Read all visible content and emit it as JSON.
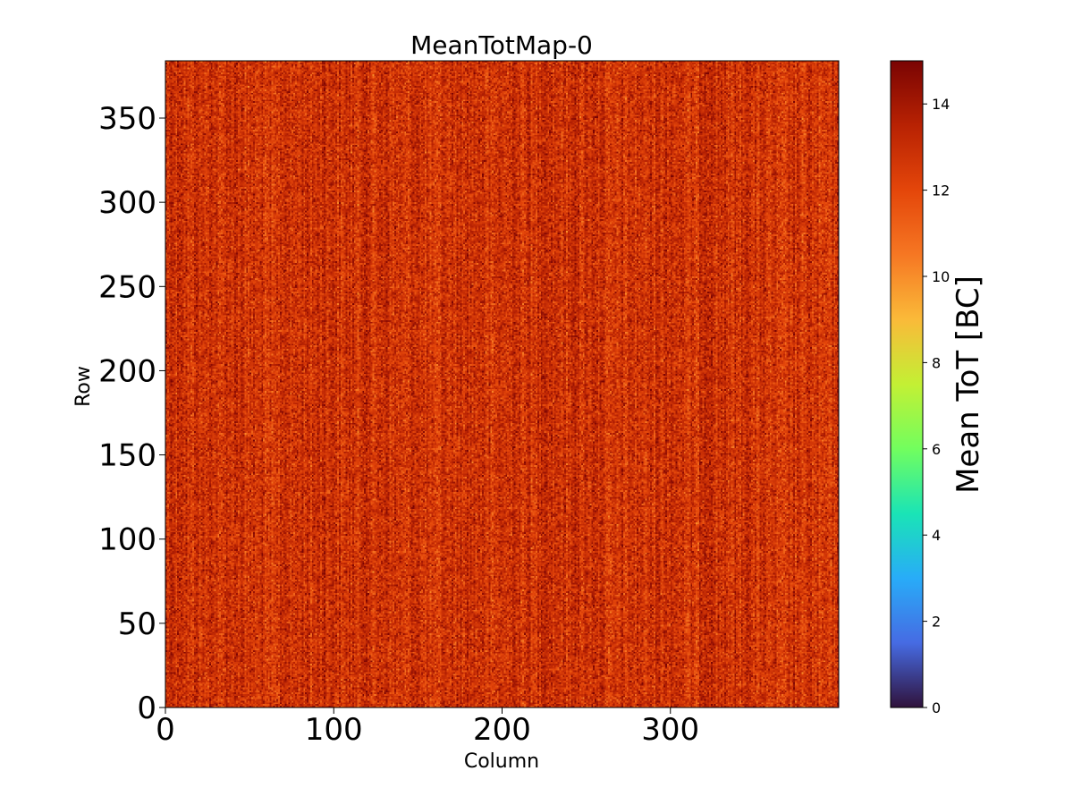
{
  "chart_data": {
    "type": "heatmap",
    "title": "MeanTotMap-0",
    "xlabel": "Column",
    "ylabel": "Row",
    "xlim": [
      0,
      400
    ],
    "ylim": [
      0,
      384
    ],
    "x_ticks": [
      0,
      100,
      200,
      300
    ],
    "y_ticks": [
      0,
      50,
      100,
      150,
      200,
      250,
      300,
      350
    ],
    "colorbar": {
      "label": "Mean ToT [BC]",
      "colormap": "turbo",
      "range": [
        0,
        15
      ],
      "ticks": [
        0,
        2,
        4,
        6,
        8,
        10,
        12,
        14
      ]
    },
    "value_summary": {
      "typical_range": [
        10,
        15
      ],
      "typical_mean": 12.8
    },
    "grid": false,
    "colors": {
      "low": "#30123b",
      "mid_low": "#4686fb",
      "mid": "#1ae4b6",
      "mid_high": "#a2fc3c",
      "high_mid": "#fabb39",
      "high": "#e4460a",
      "max": "#7a0403"
    }
  }
}
